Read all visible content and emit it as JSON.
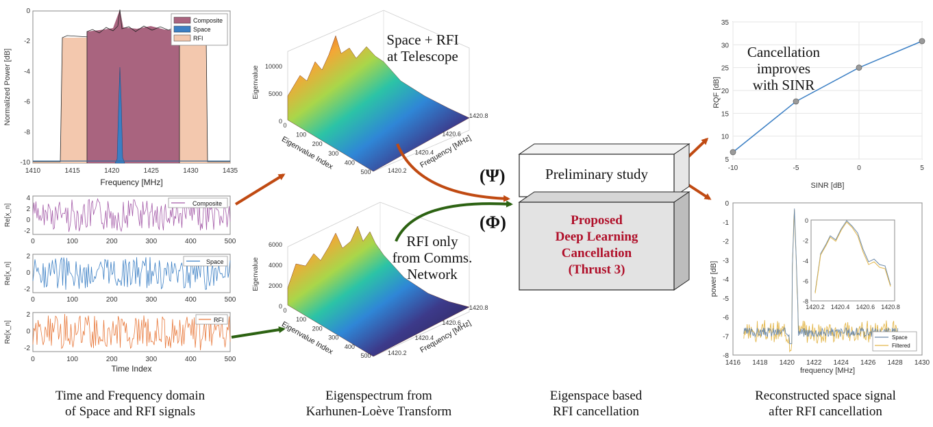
{
  "captions": {
    "time_freq": [
      "Time and Frequency domain",
      "of Space and RFI signals"
    ],
    "eigen": [
      "Eigenspectrum from",
      "Karhunen-Loève Transform"
    ],
    "cancel": [
      "Eigenspace based",
      "RFI cancellation"
    ],
    "recon": [
      "Reconstructed space signal",
      "after RFI cancellation"
    ]
  },
  "annotations": {
    "space_rfi": [
      "Space + RFI",
      "at Telescope"
    ],
    "rfi_only": [
      "RFI only",
      "from Comms.",
      "Network"
    ],
    "sinr": [
      "Cancellation",
      "improves",
      "with SINR"
    ],
    "psi": "(Ψ)",
    "phi": "(Φ)"
  },
  "boxes": {
    "preliminary": "Preliminary study",
    "proposed": [
      "Proposed",
      "Deep Learning",
      "Cancellation",
      "(Thrust 3)"
    ]
  },
  "colors": {
    "arrow_orange": "#c04a12",
    "arrow_green": "#2c6212",
    "proposed_text": "#b0102a",
    "composite": "#a45ba8",
    "space": "#3b7fc4",
    "rfi": "#e8783a"
  },
  "spectrum_chart": {
    "ylabel": "Normalized Power [dB]",
    "xlabel": "Frequency [MHz]",
    "xticks": [
      "1410",
      "1415",
      "1420",
      "1425",
      "1430",
      "1435"
    ],
    "yticks": [
      "0",
      "-2",
      "-4",
      "-6",
      "-8",
      "-10"
    ],
    "legend": [
      "Composite",
      "Space",
      "RFI"
    ]
  },
  "time_charts": {
    "xlabel": "Time Index",
    "xticks": [
      "0",
      "100",
      "200",
      "300",
      "400",
      "500"
    ],
    "ylabel": "Re[x_n]",
    "panels": [
      {
        "legend": "Composite",
        "yticks": [
          "4",
          "2",
          "0",
          "-2"
        ]
      },
      {
        "legend": "Space",
        "yticks": [
          "2",
          "0",
          "-2"
        ]
      },
      {
        "legend": "RFI",
        "yticks": [
          "2",
          "0",
          "-2"
        ]
      }
    ]
  },
  "surf_top": {
    "zlabel": "Eigenvalue",
    "zticks": [
      "10000",
      "5000",
      "0"
    ],
    "xlabel": "Eigenvalue Index",
    "xticks": [
      "0",
      "100",
      "200",
      "300",
      "400",
      "500"
    ],
    "ylabel": "Frequency [MHz]",
    "yticks": [
      "1420.2",
      "1420.4",
      "1420.6",
      "1420.8"
    ]
  },
  "surf_bottom": {
    "zlabel": "Eigenvalue",
    "zticks": [
      "6000",
      "4000",
      "2000",
      "0"
    ],
    "xlabel": "Eigenvalue Index",
    "xticks": [
      "0",
      "100",
      "200",
      "300",
      "400",
      "500"
    ],
    "ylabel": "Frequency [MHz]",
    "yticks": [
      "1420.2",
      "1420.4",
      "1420.6",
      "1420.8"
    ]
  },
  "chart_data": [
    {
      "type": "line",
      "title": "",
      "xlabel": "SINR [dB]",
      "ylabel": "RQF [dB]",
      "x": [
        -10,
        -5,
        0,
        5
      ],
      "xticks": [
        "-10",
        "-5",
        "0",
        "5"
      ],
      "yticks": [
        "35",
        "30",
        "25",
        "20",
        "15",
        "10",
        "5"
      ],
      "series": [
        {
          "values": [
            6.5,
            17.6,
            25.0,
            30.8
          ]
        }
      ],
      "xlim": [
        -10,
        5
      ],
      "ylim": [
        5,
        35
      ],
      "grid": true
    },
    {
      "type": "line",
      "xlabel": "frequency [MHz]",
      "ylabel": "power [dB]",
      "xticks": [
        "1416",
        "1418",
        "1420",
        "1422",
        "1424",
        "1426",
        "1428",
        "1430"
      ],
      "yticks": [
        "0",
        "-1",
        "-2",
        "-3",
        "-4",
        "-5",
        "-6",
        "-7",
        "-8"
      ],
      "xlim": [
        1416,
        1430
      ],
      "ylim": [
        -8,
        0
      ],
      "legend": [
        "Space",
        "Filtered"
      ],
      "inset": {
        "xticks": [
          "1420.2",
          "1420.4",
          "1420.6",
          "1420.8"
        ],
        "yticks": [
          "0",
          "-2",
          "-4",
          "-6",
          "-8"
        ]
      }
    }
  ]
}
